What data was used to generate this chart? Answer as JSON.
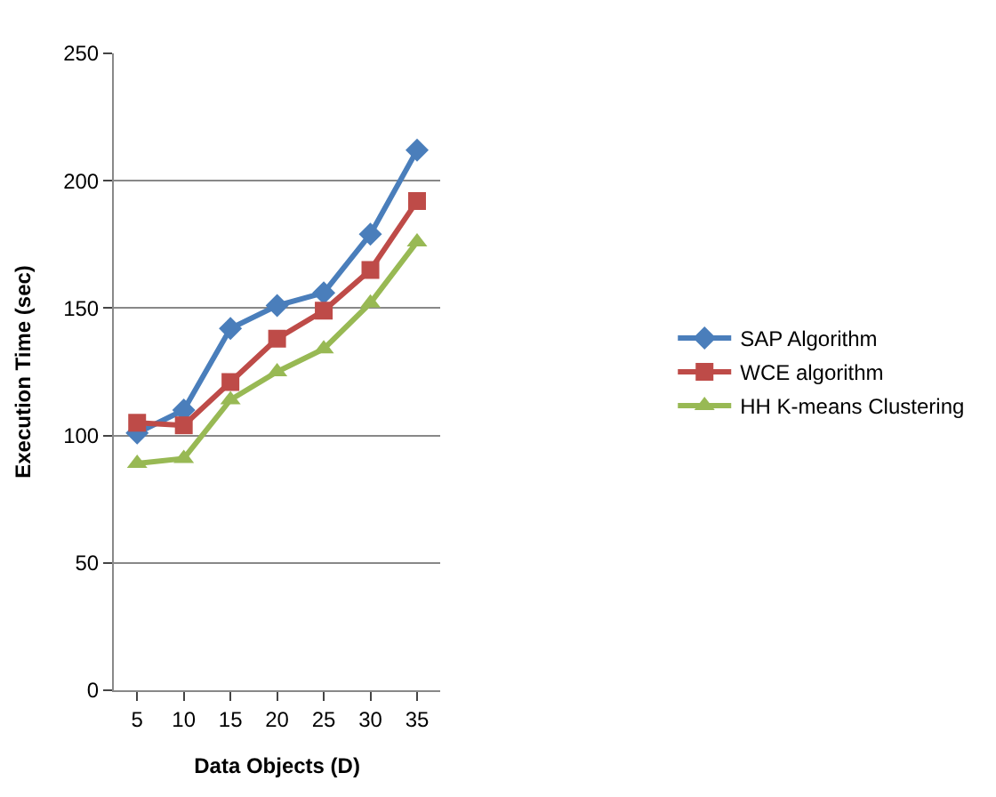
{
  "chart_data": {
    "type": "line",
    "xlabel": "Data Objects (D)",
    "ylabel": "Execution Time (sec)",
    "categories": [
      "5",
      "10",
      "15",
      "20",
      "25",
      "30",
      "35"
    ],
    "series": [
      {
        "name": "SAP Algorithm",
        "color": "#4a7ebb",
        "marker": "diamond",
        "values": [
          101,
          110,
          142,
          151,
          156,
          179,
          212
        ]
      },
      {
        "name": "WCE algorithm",
        "color": "#be4b48",
        "marker": "square",
        "values": [
          105,
          104,
          121,
          138,
          149,
          165,
          192
        ]
      },
      {
        "name": "HH K-means Clustering",
        "color": "#98b954",
        "marker": "triangle",
        "values": [
          89,
          91,
          114,
          125,
          134,
          152,
          176
        ]
      }
    ],
    "ylim": [
      0,
      250
    ],
    "yticks": [
      0,
      50,
      100,
      150,
      200,
      250
    ],
    "grid": "y",
    "legend": "right",
    "line_style": "solid"
  }
}
